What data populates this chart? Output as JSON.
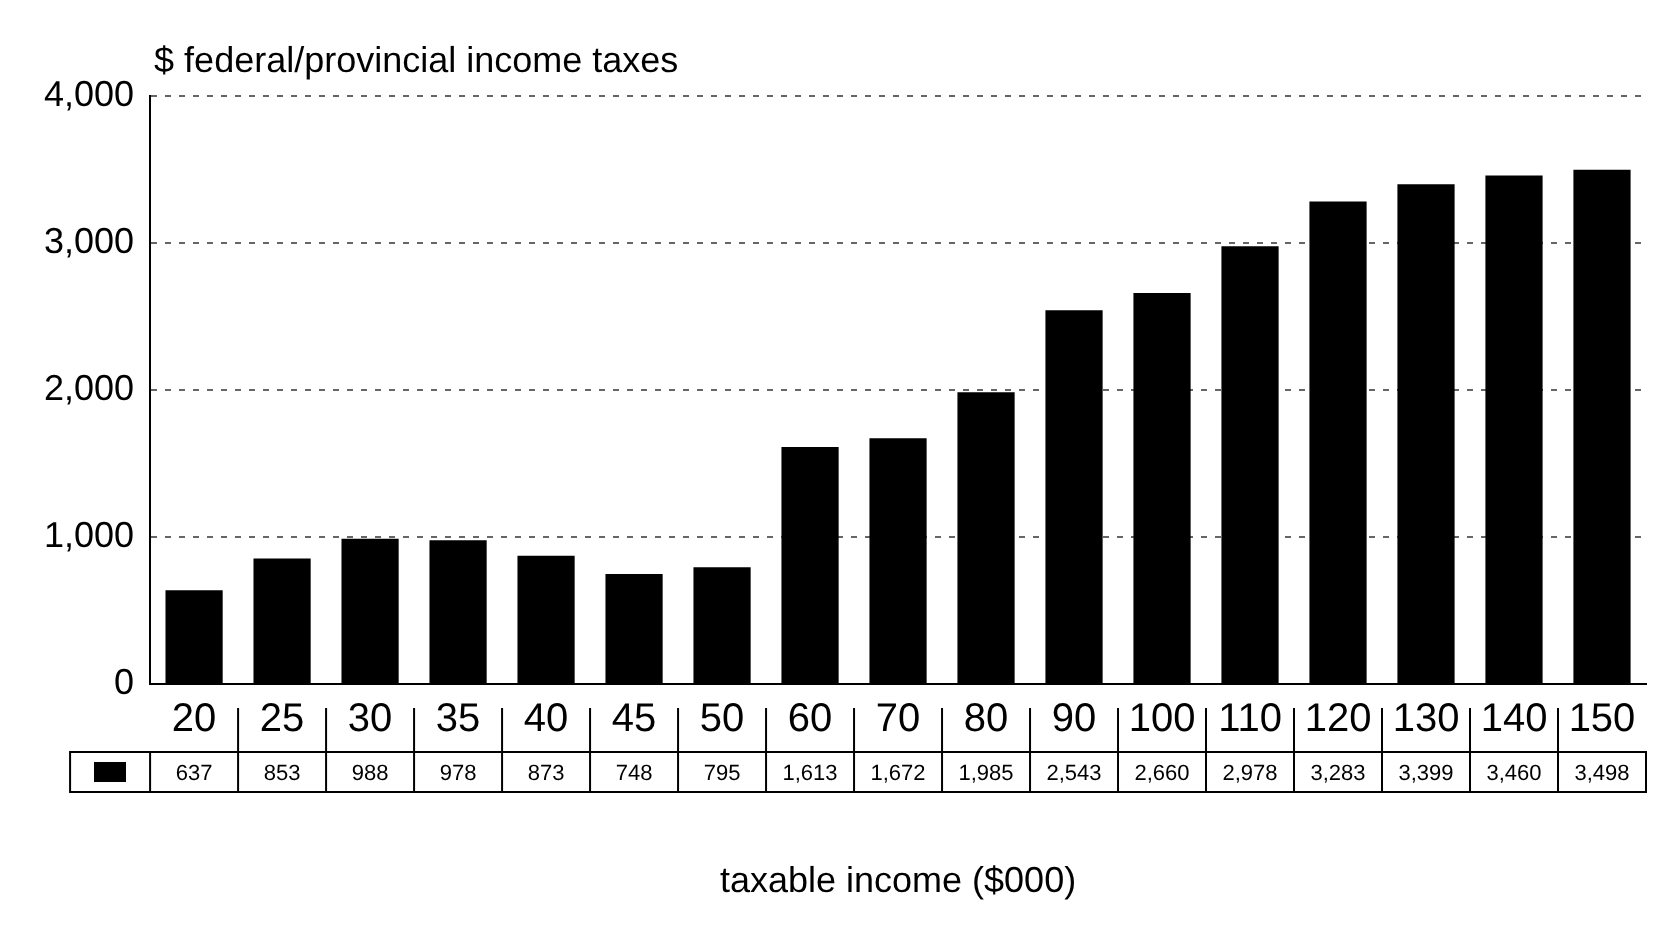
{
  "chart_data": {
    "type": "bar",
    "ylabel": "$ federal/provincial income taxes",
    "xlabel": "taxable income ($000)",
    "categories": [
      "20",
      "25",
      "30",
      "35",
      "40",
      "45",
      "50",
      "60",
      "70",
      "80",
      "90",
      "100",
      "110",
      "120",
      "130",
      "140",
      "150"
    ],
    "values": [
      637,
      853,
      988,
      978,
      873,
      748,
      795,
      1613,
      1672,
      1985,
      2543,
      2660,
      2978,
      3283,
      3399,
      3460,
      3498
    ],
    "color": "#000000",
    "ylim": [
      0,
      4000
    ],
    "yticks": [
      {
        "value": 0,
        "label": "0"
      },
      {
        "value": 1000,
        "label": "1,000"
      },
      {
        "value": 2000,
        "label": "2,000"
      },
      {
        "value": 3000,
        "label": "3,000"
      },
      {
        "value": 4000,
        "label": "4,000"
      }
    ],
    "value_labels": [
      "637",
      "853",
      "988",
      "978",
      "873",
      "748",
      "795",
      "1,613",
      "1,672",
      "1,985",
      "2,543",
      "2,660",
      "2,978",
      "3,283",
      "3,399",
      "3,460",
      "3,498"
    ],
    "grid": "y",
    "legend": false
  }
}
